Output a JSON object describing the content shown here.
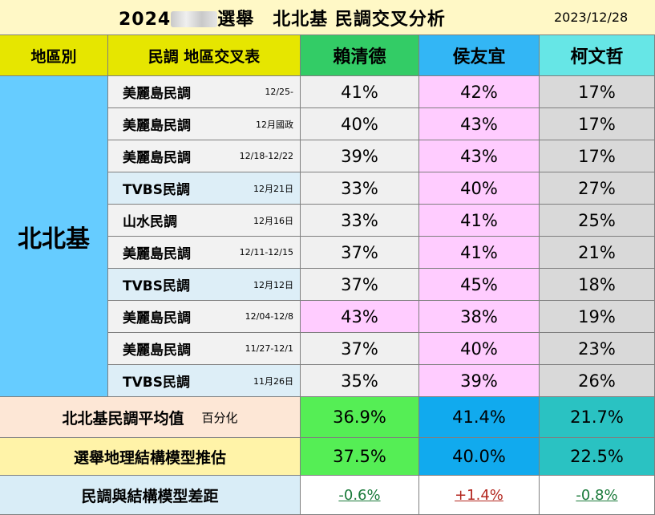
{
  "title": {
    "main_left": "2024",
    "main_right": "選舉　北北基  民調交叉分析",
    "date": "2023/12/28"
  },
  "headers": {
    "region": "地區別",
    "table": "民調 地區交叉表",
    "candidates": [
      {
        "name": "賴清德",
        "color": "#33cc66"
      },
      {
        "name": "侯友宜",
        "color": "#33b6f5"
      },
      {
        "name": "柯文哲",
        "color": "#66e6e6"
      }
    ]
  },
  "region_name": "北北基",
  "polls": [
    {
      "source": "美麗島民調",
      "date": "12/25-",
      "values": [
        "41%",
        "42%",
        "17%"
      ]
    },
    {
      "source": "美麗島民調",
      "date": "12月國政",
      "values": [
        "40%",
        "43%",
        "17%"
      ]
    },
    {
      "source": "美麗島民調",
      "date": "12/18-12/22",
      "values": [
        "39%",
        "43%",
        "17%"
      ]
    },
    {
      "source": "TVBS民調",
      "date": "12月21日",
      "values": [
        "33%",
        "40%",
        "27%"
      ]
    },
    {
      "source": "山水民調",
      "date": "12月16日",
      "values": [
        "33%",
        "41%",
        "25%"
      ]
    },
    {
      "source": "美麗島民調",
      "date": "12/11-12/15",
      "values": [
        "37%",
        "41%",
        "21%"
      ]
    },
    {
      "source": "TVBS民調",
      "date": "12月12日",
      "values": [
        "37%",
        "45%",
        "18%"
      ]
    },
    {
      "source": "美麗島民調",
      "date": "12/04-12/8",
      "values": [
        "43%",
        "38%",
        "19%"
      ]
    },
    {
      "source": "美麗島民調",
      "date": "11/27-12/1",
      "values": [
        "37%",
        "40%",
        "23%"
      ]
    },
    {
      "source": "TVBS民調",
      "date": "11月26日",
      "values": [
        "35%",
        "39%",
        "26%"
      ]
    }
  ],
  "summary": {
    "average": {
      "label": "北北基民調平均值",
      "note": "百分化",
      "values": [
        "36.9%",
        "41.4%",
        "21.7%"
      ]
    },
    "model": {
      "label": "選舉地理結構模型推估",
      "values": [
        "37.5%",
        "40.0%",
        "22.5%"
      ]
    },
    "gap": {
      "label": "民調與結構模型差距",
      "values": [
        "-0.6%",
        "+1.4%",
        "-0.8%"
      ],
      "colors": [
        "#1a7a3a",
        "#b3261e",
        "#1a7a3a"
      ]
    }
  }
}
